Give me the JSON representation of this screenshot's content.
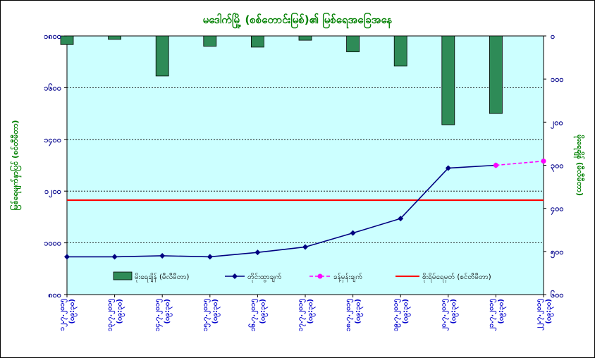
{
  "colors": {
    "plot_bg": "#ccffff",
    "bar": "#2e8b57",
    "line": "#000080",
    "forecast": "#ff00ff",
    "danger": "#ff0000",
    "title": "#008000",
    "left_axis": "#00008b",
    "x_labels": "#0000cd"
  },
  "chart_data": {
    "type": "bar+line",
    "title": "မဒေါက်မြို့ (စစ်တောင်းမြစ်)၏ မြစ်ရေအခြေအနေ",
    "y_left": {
      "label": "မြစ်ရေမျက်နှာပြင် (စင်တီမီတာ)",
      "ylim": [
        800,
        1800
      ],
      "ticks": [
        800,
        1000,
        1200,
        1400,
        1600,
        1800
      ],
      "tick_labels": [
        "၈၀၀",
        "၁၀၀၀",
        "၁၂၀၀",
        "၁၄၀၀",
        "၁၆၀၀",
        "၁၈၀၀"
      ]
    },
    "y_right": {
      "label": "မိုးရေချိန် (မီလီမီတာ)",
      "ylim": [
        0,
        600
      ],
      "inverted": true,
      "ticks": [
        0,
        100,
        200,
        300,
        400,
        500,
        600
      ],
      "tick_labels": [
        "၀",
        "၁၀၀",
        "၂၀၀",
        "၃၀၀",
        "၄၀၀",
        "၅၀၀",
        "၆၀၀"
      ]
    },
    "categories": [
      [
        "၁၂.၇.၂၀၁၅",
        "(၀၉:၃၀)"
      ],
      [
        "၁၃.၇.၂၀၁၅",
        "(၀၉:၃၀)"
      ],
      [
        "၁၄.၇.၂၀၁၅",
        "(၀၉:၃၀)"
      ],
      [
        "၁၅.၇.၂၀၁၅",
        "(၀၉:၃၀)"
      ],
      [
        "၁၆.၇.၂၀၁၅",
        "(၀၉:၃၀)"
      ],
      [
        "၁၇.၇.၂၀၁၅",
        "(၀၉:၃၀)"
      ],
      [
        "၁၈.၇.၂၀၁၅",
        "(၀၉:၃၀)"
      ],
      [
        "၁၉.၇.၂၀၁၅",
        "(၀၉:၃၀)"
      ],
      [
        "၂၀.၇.၂၀၁၅",
        "(၀၉:၃၀)"
      ],
      [
        "၂၁.၇.၂၀၁၅",
        "(၀၉:၃၀)"
      ],
      [
        "၂၂.၇.၂၀၁၅",
        "(၀၉:၃၀)"
      ]
    ],
    "rainfall": [
      20,
      8,
      93,
      24,
      26,
      10,
      37,
      70,
      206,
      180,
      null
    ],
    "water_level": [
      946,
      946,
      950,
      946,
      963,
      984,
      1038,
      1094,
      1289,
      1300,
      null
    ],
    "forecast": [
      null,
      null,
      null,
      null,
      null,
      null,
      null,
      null,
      null,
      1300,
      1316
    ],
    "danger_level": 1165,
    "legend": [
      {
        "key": "rainfall",
        "label": "မိုးရေချိန် (မီလီမီတာ)"
      },
      {
        "key": "water_level",
        "label": "တိုင်းထွာချက်"
      },
      {
        "key": "forecast",
        "label": "ခန့်မှန်းချက်"
      },
      {
        "key": "danger_level",
        "label": "စိုးရိမ်ရေမှတ် (စင်တီမီတာ)"
      }
    ],
    "grid": "horizontal dashed",
    "legend_position": "bottom inside plot"
  }
}
